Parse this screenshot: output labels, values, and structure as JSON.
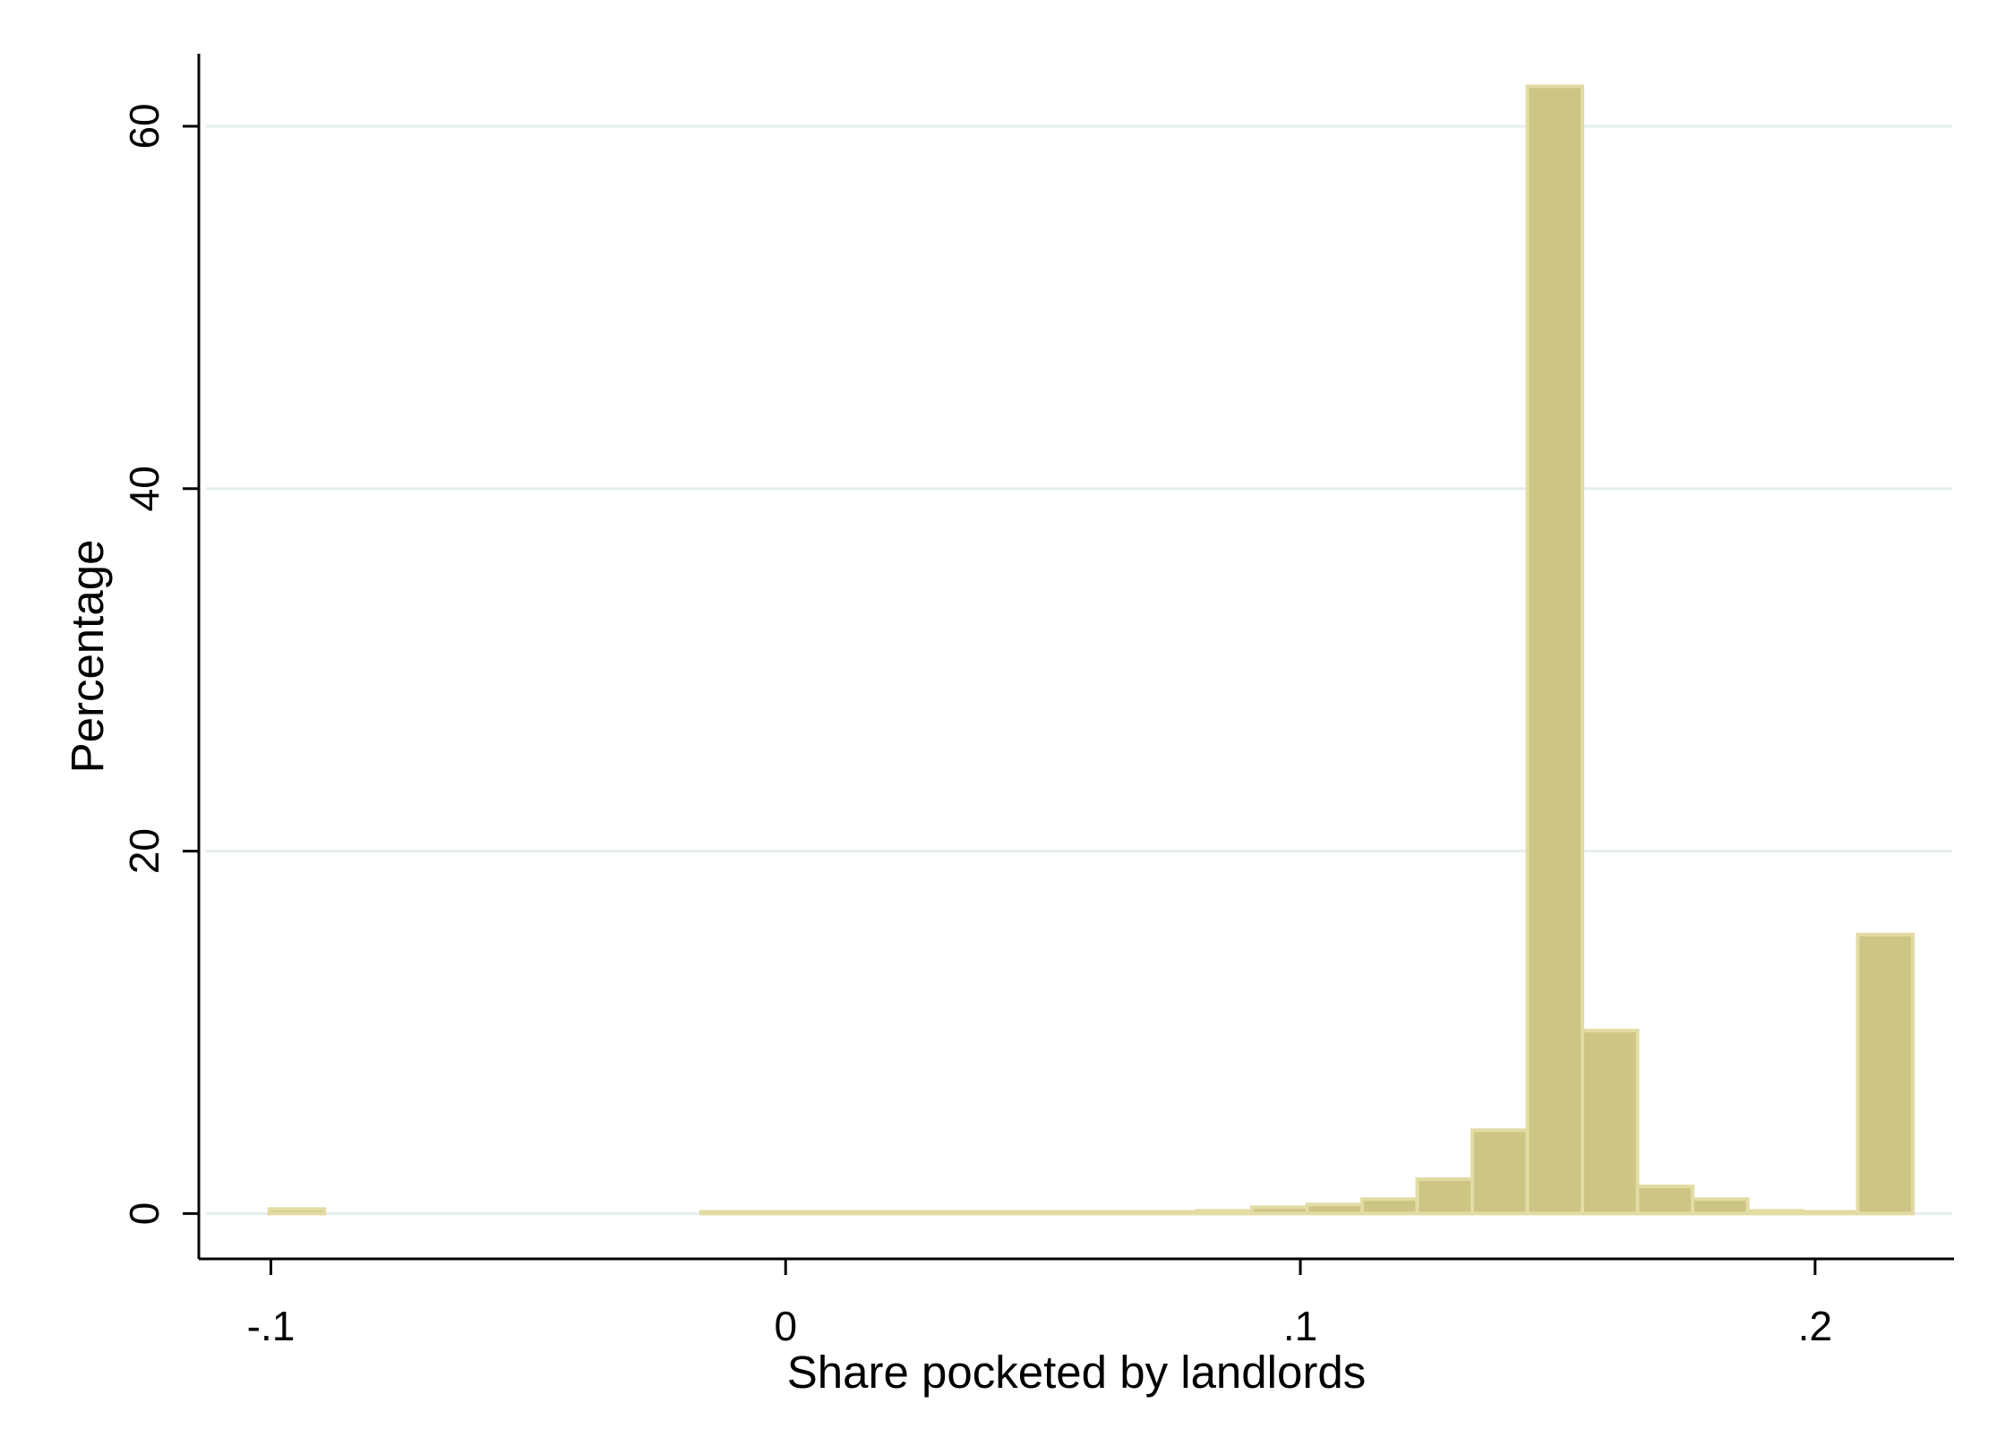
{
  "chart_data": {
    "type": "bar",
    "title": "",
    "xlabel": "Share pocketed by landlords",
    "ylabel": "Percentage",
    "xlim": [
      -0.114,
      0.227
    ],
    "ylim": [
      -2.5,
      64
    ],
    "xticks": [
      {
        "value": -0.1,
        "label": "-.1"
      },
      {
        "value": 0,
        "label": "0"
      },
      {
        "value": 0.1,
        "label": ".1"
      },
      {
        "value": 0.2,
        "label": ".2"
      }
    ],
    "yticks": [
      {
        "value": 0,
        "label": "0"
      },
      {
        "value": 20,
        "label": "20"
      },
      {
        "value": 40,
        "label": "40"
      },
      {
        "value": 60,
        "label": "60"
      }
    ],
    "grid": true,
    "bin_width": 0.0107,
    "bins": [
      {
        "x_start": -0.1003,
        "value": 0.25
      },
      {
        "x_start": -0.0164,
        "value": 0.1
      },
      {
        "x_start": -0.0057,
        "value": 0.05
      },
      {
        "x_start": 0.005,
        "value": 0.0
      },
      {
        "x_start": 0.0157,
        "value": 0.05
      },
      {
        "x_start": 0.0264,
        "value": 0.0
      },
      {
        "x_start": 0.0371,
        "value": 0.0
      },
      {
        "x_start": 0.0478,
        "value": 0.0
      },
      {
        "x_start": 0.0585,
        "value": 0.05
      },
      {
        "x_start": 0.0692,
        "value": 0.1
      },
      {
        "x_start": 0.0799,
        "value": 0.15
      },
      {
        "x_start": 0.0906,
        "value": 0.35
      },
      {
        "x_start": 0.1013,
        "value": 0.5
      },
      {
        "x_start": 0.112,
        "value": 0.8
      },
      {
        "x_start": 0.1227,
        "value": 1.9
      },
      {
        "x_start": 0.1334,
        "value": 4.6
      },
      {
        "x_start": 0.1441,
        "value": 62.2
      },
      {
        "x_start": 0.1548,
        "value": 10.1
      },
      {
        "x_start": 0.1655,
        "value": 1.5
      },
      {
        "x_start": 0.1762,
        "value": 0.8
      },
      {
        "x_start": 0.1869,
        "value": 0.15
      },
      {
        "x_start": 0.1976,
        "value": 0.1
      },
      {
        "x_start": 0.2083,
        "value": 15.4
      }
    ],
    "colors": {
      "bar_fill": "#cdc584",
      "bar_outline": "#e2dca4",
      "grid": "#e6eeee",
      "axis": "#000000"
    }
  }
}
